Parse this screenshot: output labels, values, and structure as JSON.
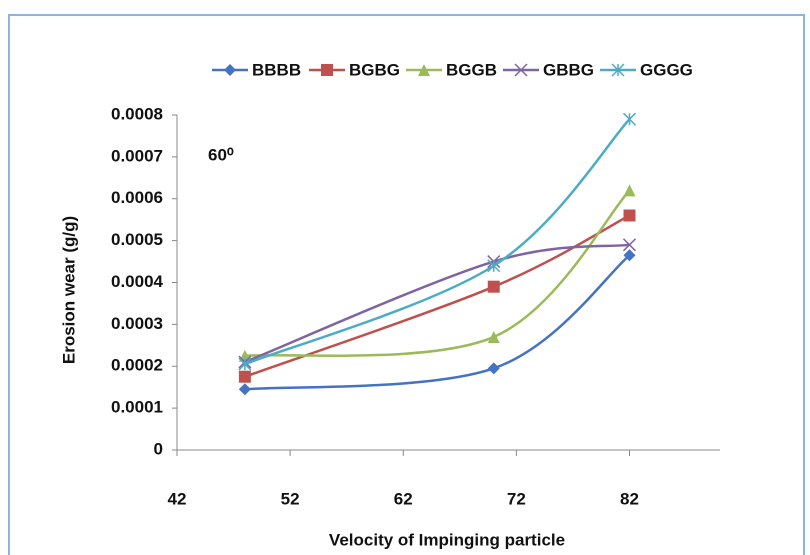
{
  "chart_data": {
    "type": "line",
    "x_label": "Velocity of Impinging particle",
    "y_label": "Erosion wear (g/g)",
    "annotation": "60⁰",
    "x": [
      48,
      70,
      82
    ],
    "series": [
      {
        "name": "BBBB",
        "color": "#4472c4",
        "marker": "diamond",
        "values": [
          0.000145,
          0.000195,
          0.000465
        ]
      },
      {
        "name": "BGBG",
        "color": "#c0504d",
        "marker": "square",
        "values": [
          0.000175,
          0.00039,
          0.00056
        ]
      },
      {
        "name": "BGGB",
        "color": "#9bbb59",
        "marker": "triangle",
        "values": [
          0.000225,
          0.00027,
          0.00062
        ]
      },
      {
        "name": "GBBG",
        "color": "#8064a2",
        "marker": "x",
        "values": [
          0.00021,
          0.00045,
          0.00049
        ]
      },
      {
        "name": "GGGG",
        "color": "#4bacc6",
        "marker": "star",
        "values": [
          0.000205,
          0.00044,
          0.00079
        ]
      }
    ],
    "xlim": [
      42,
      90
    ],
    "xticks": [
      42,
      52,
      62,
      72,
      82
    ],
    "ylim": [
      0,
      0.0008
    ],
    "yticks": [
      0,
      0.0001,
      0.0002,
      0.0003,
      0.0004,
      0.0005,
      0.0006,
      0.0007,
      0.0008
    ],
    "legend": "top",
    "smooth": true
  }
}
